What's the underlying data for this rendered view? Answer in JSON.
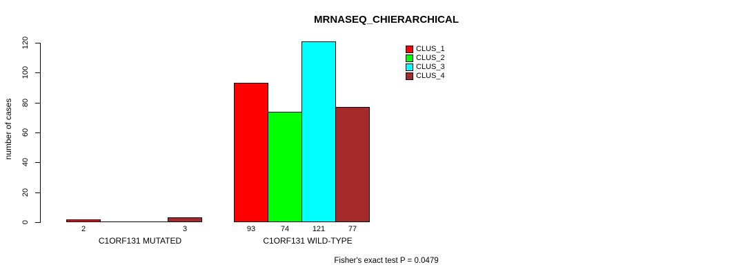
{
  "chart_data": {
    "type": "bar",
    "title": "MRNASEQ_CHIERARCHICAL",
    "ylabel": "number of cases",
    "xlabel": "",
    "footnote": "Fisher's exact test P = 0.0479",
    "categories": [
      "C1ORF131 MUTATED",
      "C1ORF131 WILD-TYPE"
    ],
    "series": [
      {
        "name": "CLUS_1",
        "color": "#FF0000",
        "values": [
          2,
          93
        ]
      },
      {
        "name": "CLUS_2",
        "color": "#00FF00",
        "values": [
          0,
          74
        ]
      },
      {
        "name": "CLUS_3",
        "color": "#00FFFF",
        "values": [
          0,
          121
        ]
      },
      {
        "name": "CLUS_4",
        "color": "#A52A2A",
        "values": [
          3,
          77
        ]
      }
    ],
    "ylim": [
      0,
      120
    ],
    "yticks": [
      0,
      20,
      40,
      60,
      80,
      100,
      120
    ],
    "bar_value_labels": [
      [
        "2",
        null,
        null,
        "3"
      ],
      [
        "93",
        "74",
        "121",
        "77"
      ]
    ],
    "grid": false,
    "legend_position": "top-right",
    "axis_color": "#000000",
    "background_color": "#FFFFFF"
  }
}
